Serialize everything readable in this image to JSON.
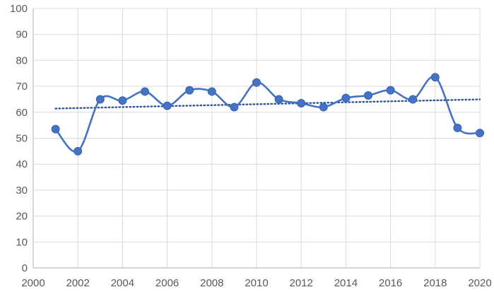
{
  "chart_data": {
    "type": "line",
    "x": [
      2001,
      2002,
      2003,
      2004,
      2005,
      2006,
      2007,
      2008,
      2009,
      2010,
      2011,
      2012,
      2013,
      2014,
      2015,
      2016,
      2017,
      2018,
      2019,
      2020
    ],
    "series": [
      {
        "values": [
          53.5,
          45,
          65,
          64.5,
          68,
          62.5,
          68.5,
          68,
          62,
          71.5,
          65,
          63.5,
          62,
          65.5,
          66.5,
          68.5,
          65,
          73.5,
          54,
          52
        ],
        "color": "#4472c4",
        "marker": "circle",
        "smooth": true
      }
    ],
    "trendline": {
      "type": "linear",
      "style": "dotted",
      "color": "#2f5597"
    },
    "xlim": [
      2000,
      2020
    ],
    "ylim": [
      0,
      100
    ],
    "xticks": [
      "2000",
      "2002",
      "2004",
      "2006",
      "2008",
      "2010",
      "2012",
      "2014",
      "2016",
      "2018",
      "2020"
    ],
    "yticks": [
      "0",
      "10",
      "20",
      "30",
      "40",
      "50",
      "60",
      "70",
      "80",
      "90",
      "100"
    ],
    "grid": true,
    "title": "",
    "xlabel": "",
    "ylabel": ""
  }
}
